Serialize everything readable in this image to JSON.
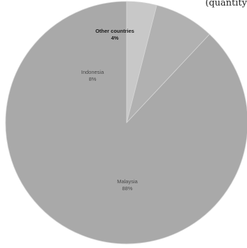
{
  "page": {
    "corner_text": "(quantity"
  },
  "chart_data": {
    "type": "pie",
    "slices": [
      {
        "label": "Malaysia",
        "value": 88,
        "value_label": "88%",
        "color": "#a9a9a9",
        "label_color": "#4a4a4a"
      },
      {
        "label": "Indonesia",
        "value": 8,
        "value_label": "8%",
        "color": "#b1b1b1",
        "label_color": "#4a4a4a"
      },
      {
        "label": "Other countries",
        "value": 4,
        "value_label": "4%",
        "color": "#c8c8c8",
        "label_color": "#1a1a1a"
      }
    ],
    "start": "top",
    "direction": "counter-clockwise",
    "legend": "none"
  }
}
